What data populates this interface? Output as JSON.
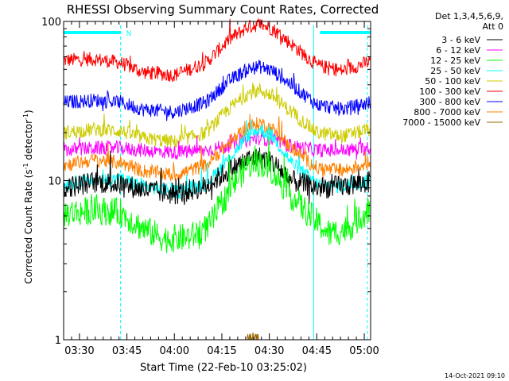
{
  "chart_data": {
    "type": "line",
    "title": "RHESSI Observing Summary Count Rates, Corrected",
    "xlabel": "Start Time (22-Feb-10 03:25:02)",
    "ylabel_main": "Corrected Count Rate (s",
    "ylabel_sup1": "-1",
    "ylabel_mid": " detector",
    "ylabel_sup2": "-1",
    "ylabel_end": ")",
    "timestamp": "14-Oct-2021 09:10",
    "x_range_minutes": [
      0,
      97
    ],
    "y_scale": "log",
    "ylim": [
      1,
      100
    ],
    "x_ticks": [
      {
        "label": "03:30",
        "minute": 5
      },
      {
        "label": "03:45",
        "minute": 20
      },
      {
        "label": "04:00",
        "minute": 35
      },
      {
        "label": "04:15",
        "minute": 50
      },
      {
        "label": "04:30",
        "minute": 65
      },
      {
        "label": "04:45",
        "minute": 80
      },
      {
        "label": "05:00",
        "minute": 95
      }
    ],
    "y_ticks": [
      {
        "label": "1",
        "value": 1
      },
      {
        "label": "10",
        "value": 10
      },
      {
        "label": "100",
        "value": 100
      }
    ],
    "legend": {
      "placement": "top-right",
      "header_line1": "Det 1,3,4,5,6,9,",
      "header_line2": "Att 0",
      "entries": [
        {
          "label": "3 - 6 keV",
          "color": "#000000"
        },
        {
          "label": "6 - 12 keV",
          "color": "#ff00ff"
        },
        {
          "label": "12 - 25 keV",
          "color": "#00ff00"
        },
        {
          "label": "25 - 50 keV",
          "color": "#00ffff"
        },
        {
          "label": "50 - 100 keV",
          "color": "#cccc00"
        },
        {
          "label": "100 - 300 keV",
          "color": "#ff0000"
        },
        {
          "label": "300 - 800 keV",
          "color": "#0000ff"
        },
        {
          "label": "800 - 7000 keV",
          "color": "#ff8000"
        },
        {
          "label": "7000 - 15000 keV",
          "color": "#996600"
        }
      ]
    },
    "annotations": {
      "flag_label": "N",
      "bar_color": "#00ffff",
      "bar_segments_minutes": [
        [
          0,
          18
        ],
        [
          81,
          97
        ]
      ],
      "dashed_lines_minutes": [
        18,
        96
      ],
      "solid_lines_minutes": [
        79
      ]
    },
    "series": [
      {
        "name": "3 - 6 keV",
        "color": "#000000",
        "x": [
          0,
          10,
          18,
          25,
          35,
          45,
          52,
          58,
          62,
          66,
          72,
          80,
          88,
          97
        ],
        "y": [
          9,
          9.8,
          9.5,
          8.8,
          8.2,
          9.2,
          11.5,
          13.5,
          14,
          13,
          10,
          9,
          9.2,
          9.8
        ]
      },
      {
        "name": "6 - 12 keV",
        "color": "#ff00ff",
        "x": [
          0,
          10,
          18,
          25,
          35,
          45,
          52,
          58,
          62,
          66,
          72,
          80,
          88,
          97
        ],
        "y": [
          15.5,
          16,
          16,
          15.5,
          15,
          15.5,
          16.5,
          18,
          18.5,
          18,
          16.5,
          15.5,
          15.5,
          16
        ]
      },
      {
        "name": "12 - 25 keV",
        "color": "#00ff00",
        "x": [
          0,
          10,
          18,
          25,
          32,
          40,
          46,
          52,
          58,
          62,
          66,
          72,
          78,
          84,
          90,
          97
        ],
        "y": [
          6.2,
          6.5,
          6.3,
          5,
          4.3,
          4.4,
          5.2,
          8.5,
          12.5,
          13,
          11.5,
          8,
          6,
          4.6,
          5,
          6.8
        ]
      },
      {
        "name": "25 - 50 keV",
        "color": "#00ffff",
        "x": [
          0,
          10,
          18,
          25,
          35,
          45,
          52,
          58,
          62,
          66,
          72,
          80,
          88,
          97
        ],
        "y": [
          9.5,
          10,
          10.2,
          9.3,
          8.5,
          9.5,
          13.5,
          19,
          21,
          19,
          13,
          9.5,
          9.2,
          10
        ]
      },
      {
        "name": "50 - 100 keV",
        "color": "#cccc00",
        "x": [
          0,
          10,
          18,
          25,
          35,
          45,
          52,
          58,
          62,
          66,
          72,
          80,
          88,
          97
        ],
        "y": [
          20,
          21,
          20.5,
          18.5,
          17.5,
          20,
          28,
          35,
          37,
          34,
          27,
          20,
          19,
          21
        ]
      },
      {
        "name": "100 - 300 keV",
        "color": "#ff0000",
        "x": [
          0,
          10,
          18,
          25,
          35,
          45,
          52,
          58,
          62,
          66,
          72,
          80,
          88,
          97
        ],
        "y": [
          57,
          58,
          55,
          48,
          46,
          55,
          76,
          92,
          96,
          90,
          72,
          53,
          49,
          56
        ]
      },
      {
        "name": "300 - 800 keV",
        "color": "#0000ff",
        "x": [
          0,
          10,
          18,
          25,
          35,
          45,
          52,
          58,
          62,
          66,
          72,
          80,
          88,
          97
        ],
        "y": [
          31,
          32,
          31,
          28,
          27,
          31,
          42,
          50,
          52,
          49,
          40,
          30,
          28,
          31
        ]
      },
      {
        "name": "800 - 7000 keV",
        "color": "#ff8000",
        "x": [
          0,
          10,
          18,
          25,
          35,
          45,
          52,
          58,
          62,
          66,
          72,
          80,
          88,
          97
        ],
        "y": [
          12.5,
          13.5,
          13,
          11.5,
          10.8,
          12.5,
          17,
          21.5,
          23,
          21,
          16,
          12,
          11.5,
          13
        ]
      },
      {
        "name": "7000 - 15000 keV",
        "color": "#996600",
        "x": [
          58,
          60,
          62
        ],
        "y": [
          1,
          1,
          1
        ]
      }
    ]
  }
}
